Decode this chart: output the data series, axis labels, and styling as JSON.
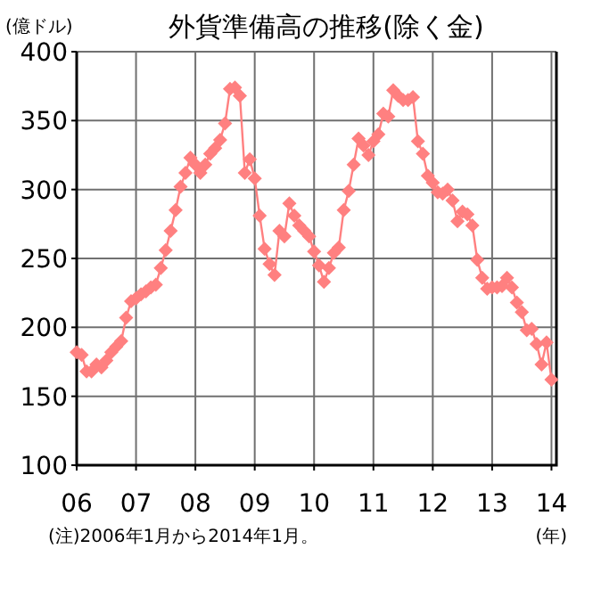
{
  "chart_data": {
    "type": "line",
    "title": "外貨準備高の推移(除く金)",
    "ylabel": "(億ドル)",
    "xlabel": "(年)",
    "annotations": [
      "(注)2006年1月から2014年1月。"
    ],
    "x": [
      "2006-01",
      "2006-02",
      "2006-03",
      "2006-04",
      "2006-05",
      "2006-06",
      "2006-07",
      "2006-08",
      "2006-09",
      "2006-10",
      "2006-11",
      "2006-12",
      "2007-01",
      "2007-02",
      "2007-03",
      "2007-04",
      "2007-05",
      "2007-06",
      "2007-07",
      "2007-08",
      "2007-09",
      "2007-10",
      "2007-11",
      "2007-12",
      "2008-01",
      "2008-02",
      "2008-03",
      "2008-04",
      "2008-05",
      "2008-06",
      "2008-07",
      "2008-08",
      "2008-09",
      "2008-10",
      "2008-11",
      "2008-12",
      "2009-01",
      "2009-02",
      "2009-03",
      "2009-04",
      "2009-05",
      "2009-06",
      "2009-07",
      "2009-08",
      "2009-09",
      "2009-10",
      "2009-11",
      "2009-12",
      "2010-01",
      "2010-02",
      "2010-03",
      "2010-04",
      "2010-05",
      "2010-06",
      "2010-07",
      "2010-08",
      "2010-09",
      "2010-10",
      "2010-11",
      "2010-12",
      "2011-01",
      "2011-02",
      "2011-03",
      "2011-04",
      "2011-05",
      "2011-06",
      "2011-07",
      "2011-08",
      "2011-09",
      "2011-10",
      "2011-11",
      "2011-12",
      "2012-01",
      "2012-02",
      "2012-03",
      "2012-04",
      "2012-05",
      "2012-06",
      "2012-07",
      "2012-08",
      "2012-09",
      "2012-10",
      "2012-11",
      "2012-12",
      "2013-01",
      "2013-02",
      "2013-03",
      "2013-04",
      "2013-05",
      "2013-06",
      "2013-07",
      "2013-08",
      "2013-09",
      "2013-10",
      "2013-11",
      "2013-12",
      "2014-01"
    ],
    "values": [
      182,
      180,
      168,
      168,
      173,
      171,
      176,
      182,
      186,
      190,
      207,
      219,
      221,
      224,
      226,
      229,
      231,
      243,
      256,
      270,
      285,
      302,
      312,
      323,
      318,
      312,
      318,
      326,
      330,
      336,
      348,
      373,
      374,
      368,
      312,
      322,
      308,
      281,
      257,
      246,
      238,
      270,
      266,
      290,
      281,
      274,
      270,
      266,
      255,
      245,
      233,
      243,
      254,
      258,
      285,
      299,
      318,
      337,
      332,
      325,
      335,
      340,
      355,
      353,
      372,
      368,
      365,
      365,
      367,
      335,
      326,
      310,
      305,
      298,
      297,
      300,
      292,
      277,
      284,
      282,
      274,
      249,
      236,
      228,
      229,
      229,
      230,
      236,
      229,
      218,
      211,
      198,
      199,
      188,
      173,
      189,
      162
    ],
    "color": "#ff8080",
    "marker": "diamond",
    "grid": true,
    "xlim": [
      "2006-01",
      "2014-02"
    ],
    "xticks": [
      {
        "value": "2006-01",
        "label": "06"
      },
      {
        "value": "2007-01",
        "label": "07"
      },
      {
        "value": "2008-01",
        "label": "08"
      },
      {
        "value": "2009-01",
        "label": "09"
      },
      {
        "value": "2010-01",
        "label": "10"
      },
      {
        "value": "2011-01",
        "label": "11"
      },
      {
        "value": "2012-01",
        "label": "12"
      },
      {
        "value": "2013-01",
        "label": "13"
      },
      {
        "value": "2014-01",
        "label": "14"
      }
    ],
    "ylim": [
      100,
      400
    ],
    "yticks": [
      100,
      150,
      200,
      250,
      300,
      350,
      400
    ]
  }
}
